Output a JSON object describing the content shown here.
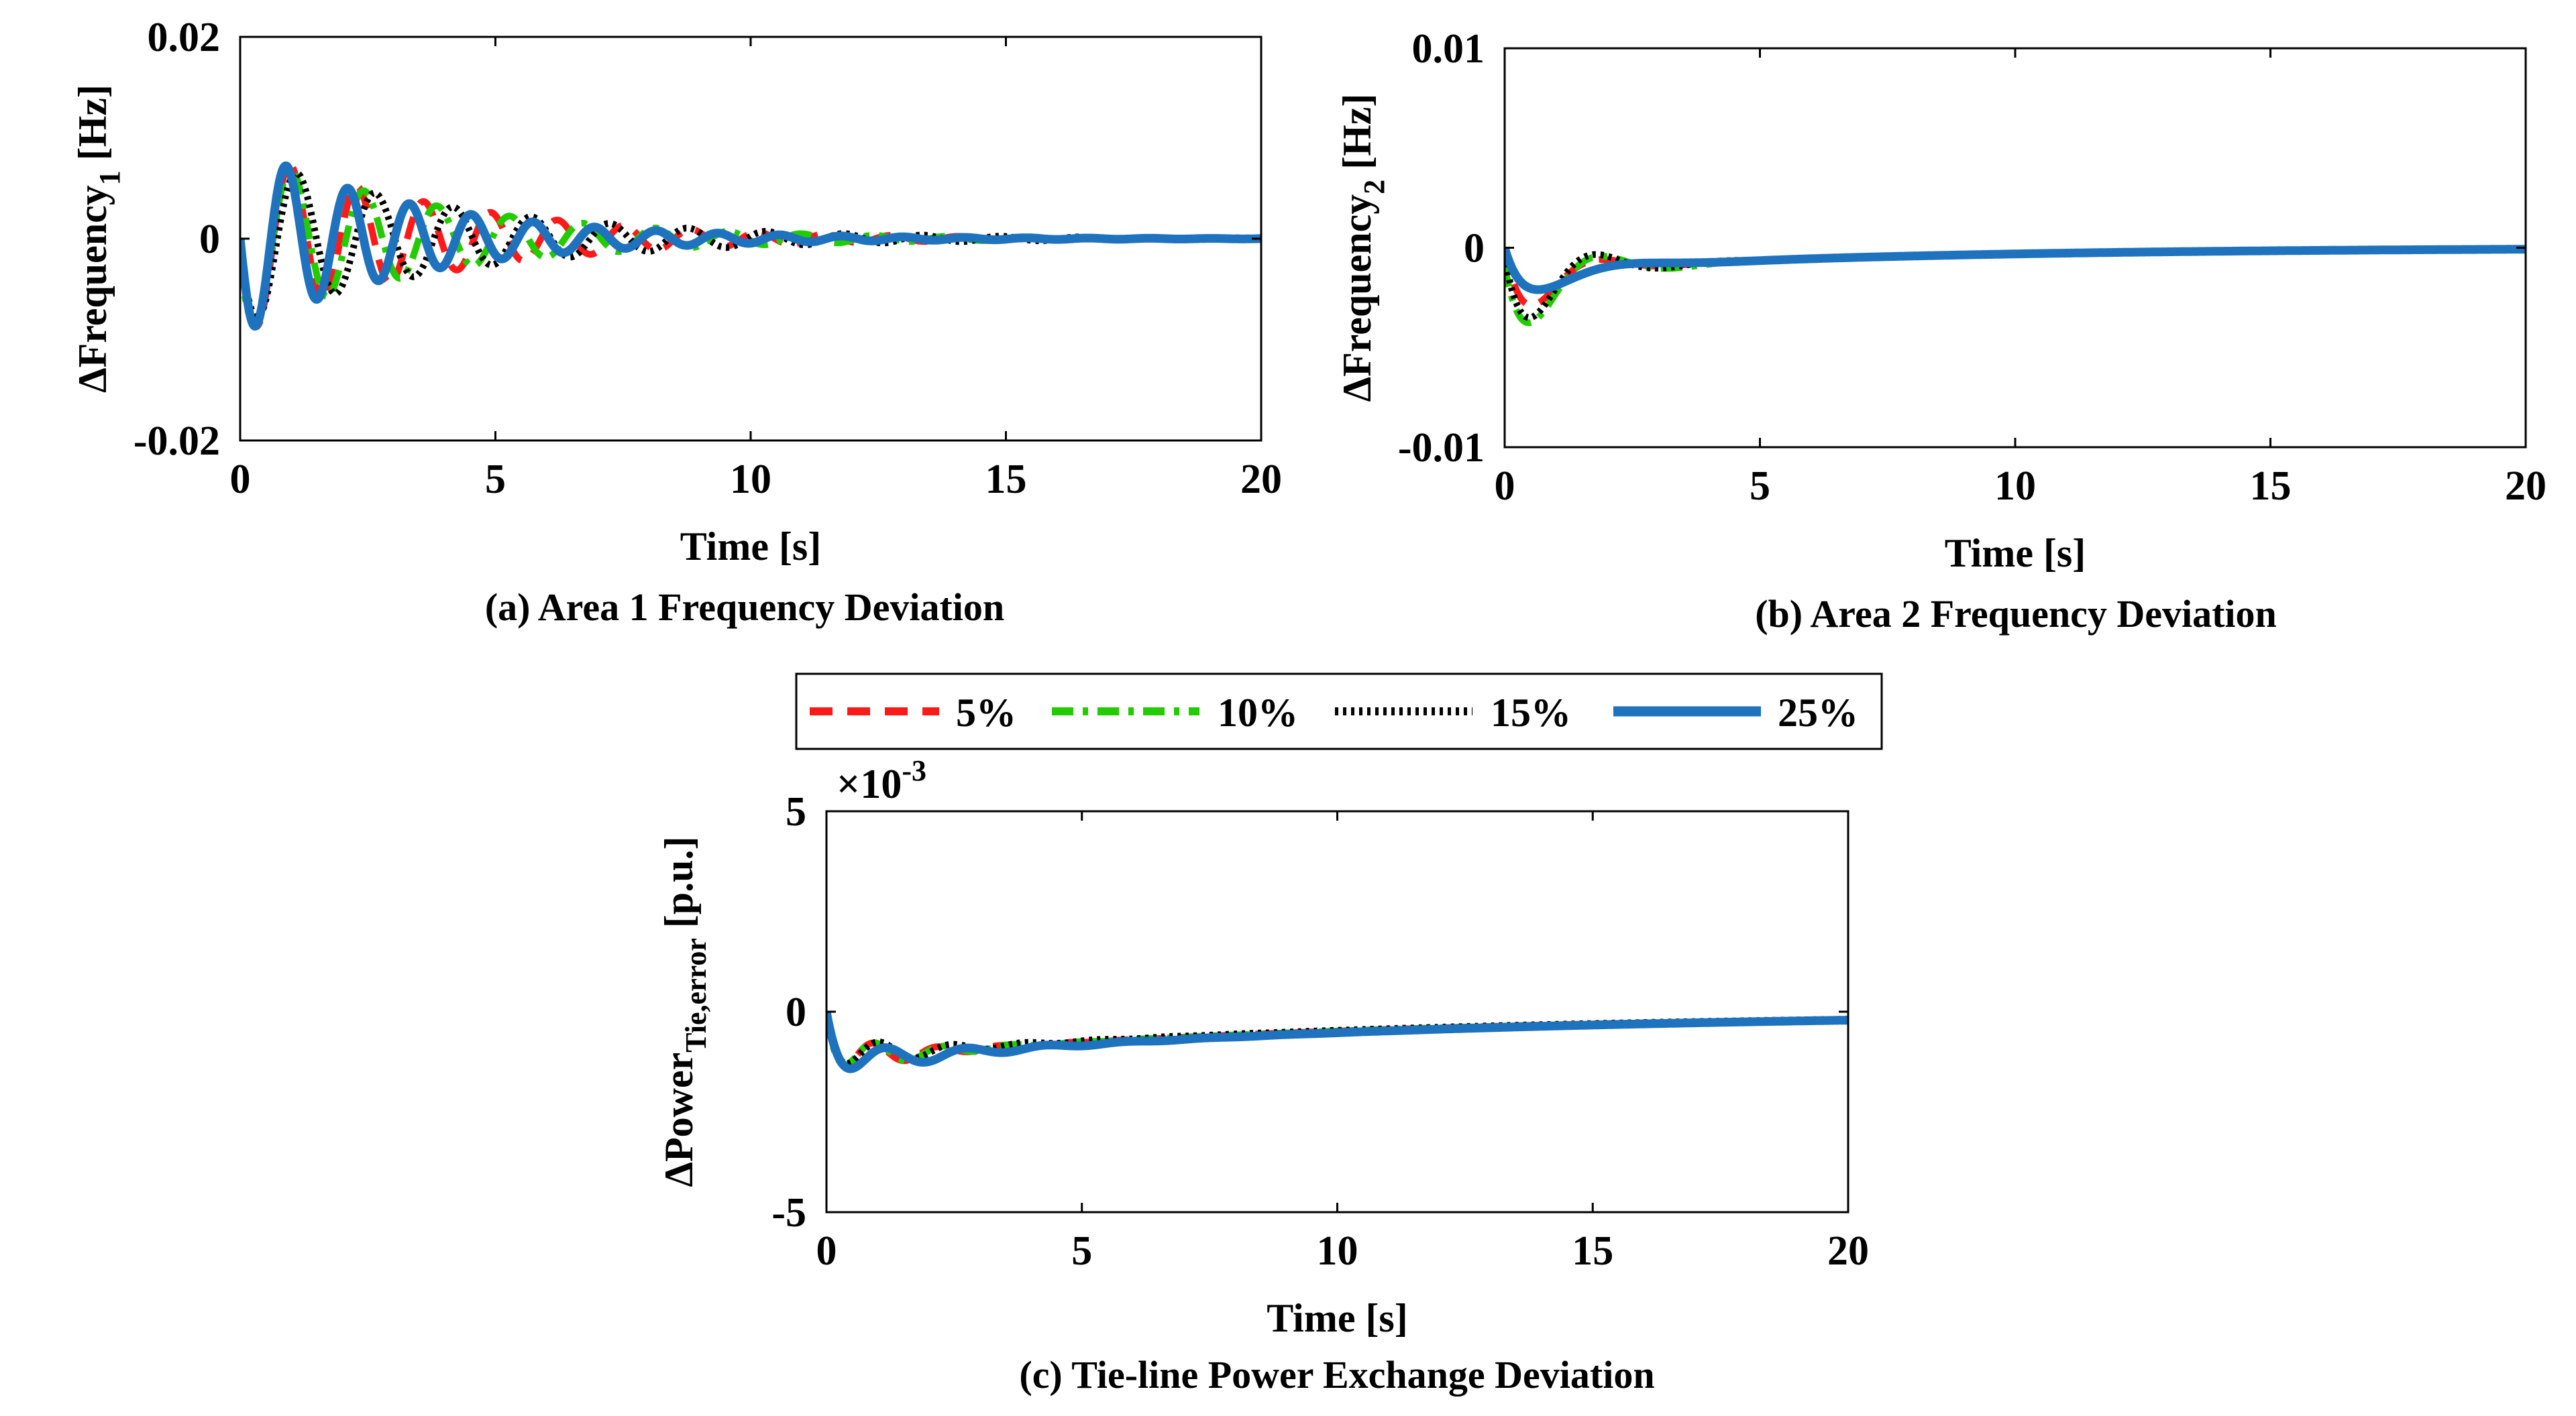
{
  "legend": [
    {
      "label": "5%",
      "color": "#ff1a1a",
      "style": "dashed"
    },
    {
      "label": "10%",
      "color": "#22cc00",
      "style": "dashdot"
    },
    {
      "label": "15%",
      "color": "#000000",
      "style": "dotted"
    },
    {
      "label": "25%",
      "color": "#1f72bd",
      "style": "solid"
    }
  ],
  "chart_data": [
    {
      "type": "line",
      "id": "a",
      "caption": "(a) Area 1 Frequency Deviation",
      "xlabel": "Time [s]",
      "ylabel_main": "ΔFrequency",
      "ylabel_sub": "1",
      "ylabel_tail": " [Hz]",
      "xlim": [
        0,
        20
      ],
      "ylim": [
        -0.02,
        0.02
      ],
      "xticks": [
        0,
        5,
        10,
        15,
        20
      ],
      "xtick_labels": [
        "0",
        "5",
        "10",
        "15",
        "20"
      ],
      "yticks": [
        -0.02,
        0,
        0.02
      ],
      "ytick_labels": [
        "-0.02",
        "0",
        "0.02"
      ],
      "exponent_label": "",
      "series": [
        {
          "name": "5%",
          "omega": 4.8,
          "amp": -0.0095,
          "tau": 3.8,
          "phase": 0,
          "offset": 0,
          "drift": 0
        },
        {
          "name": "10%",
          "omega": 4.4,
          "amp": -0.009,
          "tau": 3.8,
          "phase": 0.3,
          "offset": 0,
          "drift": 0
        },
        {
          "name": "15%",
          "omega": 4.1,
          "amp": -0.0085,
          "tau": 4.2,
          "phase": 0.15,
          "offset": 0,
          "drift": 0
        },
        {
          "name": "25%",
          "omega": 5.2,
          "amp": -0.0095,
          "tau": 3.3,
          "phase": 0,
          "offset": 0,
          "drift": 0
        }
      ]
    },
    {
      "type": "line",
      "id": "b",
      "caption": "(b) Area 2 Frequency Deviation",
      "xlabel": "Time [s]",
      "ylabel_main": "ΔFrequency",
      "ylabel_sub": "2",
      "ylabel_tail": " [Hz]",
      "xlim": [
        0,
        20
      ],
      "ylim": [
        -0.01,
        0.01
      ],
      "xticks": [
        0,
        5,
        10,
        15,
        20
      ],
      "xtick_labels": [
        "0",
        "5",
        "10",
        "15",
        "20"
      ],
      "yticks": [
        -0.01,
        0,
        0.01
      ],
      "ytick_labels": [
        "-0.01",
        "0",
        "0.01"
      ],
      "exponent_label": "",
      "series": [
        {
          "name": "5%",
          "omega": 2.3,
          "amp": -0.0035,
          "tau": 0.9,
          "phase": 0,
          "offset": -0.0013,
          "drift": 7
        },
        {
          "name": "10%",
          "omega": 2.2,
          "amp": -0.0045,
          "tau": 1.0,
          "phase": 0.2,
          "offset": -0.0014,
          "drift": 7
        },
        {
          "name": "15%",
          "omega": 2.4,
          "amp": -0.0042,
          "tau": 1.0,
          "phase": 0.1,
          "offset": -0.0013,
          "drift": 7
        },
        {
          "name": "25%",
          "omega": 1.6,
          "amp": -0.0024,
          "tau": 0.9,
          "phase": 0,
          "offset": -0.0013,
          "drift": 7
        }
      ]
    },
    {
      "type": "line",
      "id": "c",
      "caption": "(c) Tie-line Power Exchange Deviation",
      "xlabel": "Time [s]",
      "ylabel_main": "ΔPower",
      "ylabel_sub": "Tie,error",
      "ylabel_tail": " [p.u.]",
      "xlim": [
        0,
        20
      ],
      "ylim": [
        -5,
        5
      ],
      "xticks": [
        0,
        5,
        10,
        15,
        20
      ],
      "xtick_labels": [
        "0",
        "5",
        "10",
        "15",
        "20"
      ],
      "yticks": [
        -5,
        0,
        5
      ],
      "ytick_labels": [
        "-5",
        "0",
        "5"
      ],
      "exponent_label": "×10",
      "exponent_power": "-3",
      "series": [
        {
          "name": "5%",
          "omega": 5.0,
          "amp": -0.6,
          "tau": 1.3,
          "phase": 0,
          "offset": -1.2,
          "drift": 11
        },
        {
          "name": "10%",
          "omega": 4.7,
          "amp": -0.6,
          "tau": 1.4,
          "phase": 0.2,
          "offset": -1.2,
          "drift": 11
        },
        {
          "name": "15%",
          "omega": 4.4,
          "amp": -0.55,
          "tau": 1.5,
          "phase": 0.1,
          "offset": -1.15,
          "drift": 11
        },
        {
          "name": "25%",
          "omega": 4.0,
          "amp": -0.5,
          "tau": 1.8,
          "phase": 0,
          "offset": -1.3,
          "drift": 11
        }
      ]
    }
  ]
}
